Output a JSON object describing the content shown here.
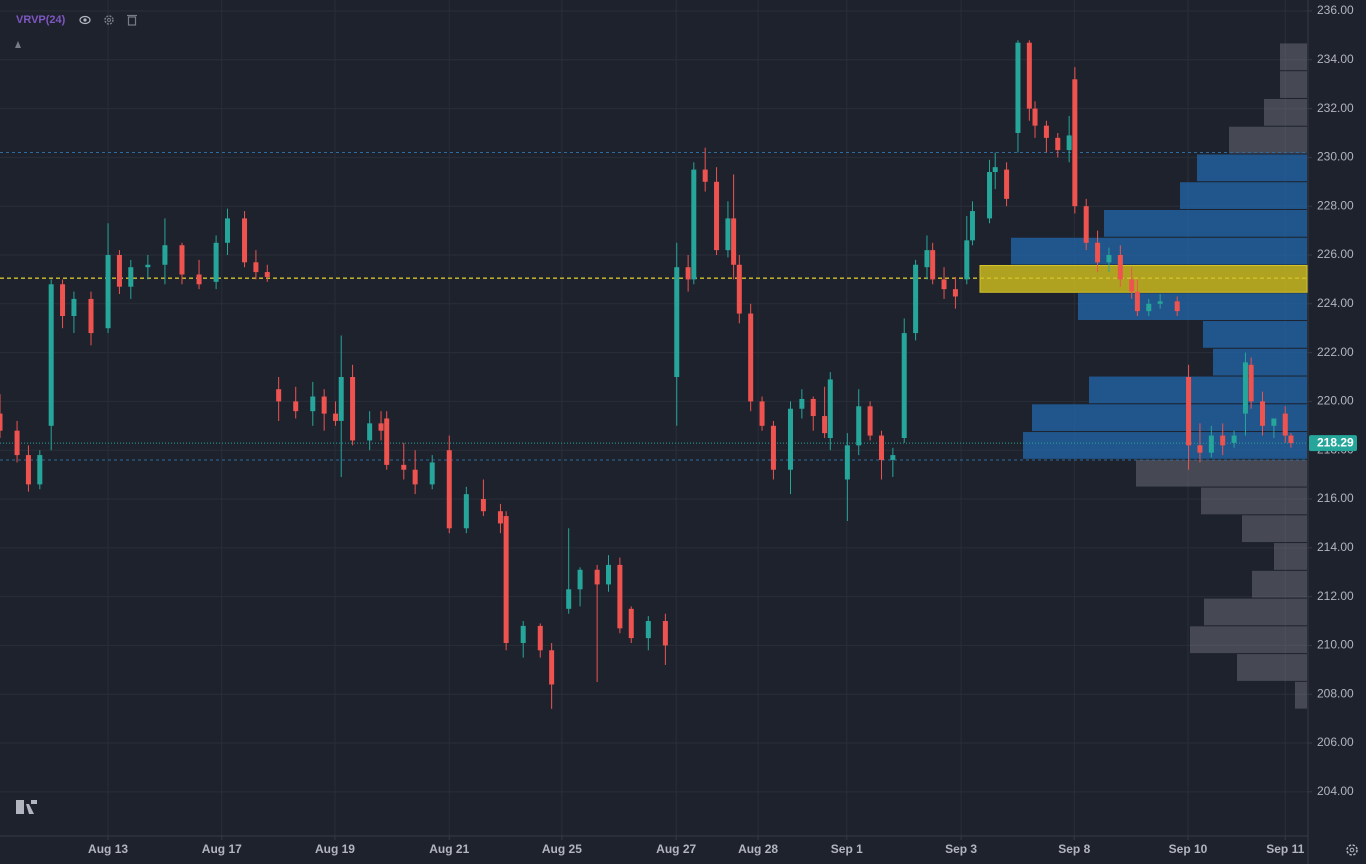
{
  "chart_data": {
    "type": "candlestick",
    "indicator": "VRVP(24)",
    "xlim": [
      0,
      230
    ],
    "ylim": [
      202.19,
      236.45
    ],
    "xticks": [
      {
        "value": 19,
        "label": "Aug 13"
      },
      {
        "value": 39,
        "label": "Aug 17"
      },
      {
        "value": 58.9,
        "label": "Aug 19"
      },
      {
        "value": 79,
        "label": "Aug 21"
      },
      {
        "value": 98.8,
        "label": "Aug 25"
      },
      {
        "value": 118.9,
        "label": "Aug 27"
      },
      {
        "value": 133.3,
        "label": "Aug 28"
      },
      {
        "value": 148.9,
        "label": "Sep 1"
      },
      {
        "value": 169,
        "label": "Sep 3"
      },
      {
        "value": 188.9,
        "label": "Sep 8"
      },
      {
        "value": 208.9,
        "label": "Sep 10"
      },
      {
        "value": 226,
        "label": "Sep 11"
      }
    ],
    "yticks": [
      {
        "value": 204,
        "label": "204.00"
      },
      {
        "value": 206,
        "label": "206.00"
      },
      {
        "value": 208,
        "label": "208.00"
      },
      {
        "value": 210,
        "label": "210.00"
      },
      {
        "value": 212,
        "label": "212.00"
      },
      {
        "value": 214,
        "label": "214.00"
      },
      {
        "value": 216,
        "label": "216.00"
      },
      {
        "value": 218,
        "label": "218.00"
      },
      {
        "value": 220,
        "label": "220.00"
      },
      {
        "value": 222,
        "label": "222.00"
      },
      {
        "value": 224,
        "label": "224.00"
      },
      {
        "value": 226,
        "label": "226.00"
      },
      {
        "value": 228,
        "label": "228.00"
      },
      {
        "value": 230,
        "label": "230.00"
      },
      {
        "value": 232,
        "label": "232.00"
      },
      {
        "value": 234,
        "label": "234.00"
      },
      {
        "value": 236,
        "label": "236.00"
      }
    ],
    "grid": true,
    "up_color": "#26a69a",
    "down_color": "#ef5350",
    "x": [
      0,
      3,
      5,
      7,
      9,
      11,
      13,
      16,
      19,
      21,
      23,
      26,
      29,
      32,
      35,
      38,
      40,
      43,
      45,
      47,
      49,
      52,
      55,
      57,
      59,
      60,
      62,
      65,
      67,
      68,
      71,
      73,
      76,
      79,
      82,
      85,
      88,
      89,
      92,
      95,
      97,
      100,
      102,
      105,
      107,
      109,
      111,
      114,
      117,
      119,
      121,
      122,
      124,
      126,
      128,
      129,
      130,
      132,
      134,
      136,
      139,
      141,
      143,
      145,
      146,
      149,
      151,
      153,
      155,
      157,
      159,
      161,
      163,
      164,
      166,
      168,
      170,
      171,
      174,
      175,
      177,
      179,
      181,
      182,
      184,
      186,
      188,
      189,
      191,
      193,
      195,
      197,
      199,
      200,
      202,
      204,
      207,
      209,
      211,
      213,
      215,
      217,
      219,
      220,
      222,
      224,
      226,
      227
    ],
    "open": [
      219.5,
      218.8,
      217.8,
      216.6,
      219,
      224.8,
      223.5,
      224.2,
      223,
      226,
      224.7,
      225.5,
      225.6,
      226.4,
      225.2,
      224.9,
      226.5,
      227.5,
      225.7,
      225.3,
      220.5,
      220,
      219.6,
      220.2,
      219.5,
      219.2,
      221,
      218.4,
      219.1,
      219.3,
      217.4,
      217.2,
      216.6,
      218,
      214.8,
      216,
      215.5,
      215.3,
      210.1,
      210.8,
      209.8,
      211.5,
      212.3,
      213.1,
      212.5,
      213.3,
      211.5,
      210.3,
      211,
      221,
      225.5,
      225,
      229.5,
      229,
      226.2,
      227.5,
      225.6,
      223.6,
      220,
      219,
      217.2,
      219.7,
      220.1,
      219.4,
      218.5,
      216.8,
      218.2,
      219.8,
      218.6,
      217.6,
      218.5,
      222.8,
      225.5,
      226.2,
      225,
      224.6,
      225,
      226.6,
      227.5,
      229.4,
      229.5,
      231,
      234.7,
      232,
      231.3,
      230.8,
      230.3,
      233.2,
      228,
      226.5,
      225.7,
      226,
      225,
      224.5,
      223.7,
      224,
      224.1,
      221,
      218.2,
      217.9,
      218.6,
      218.3,
      219.5,
      221.5,
      220,
      219,
      219.5,
      218.6
    ],
    "high": [
      220.3,
      219.2,
      218.2,
      218,
      225,
      225,
      224.5,
      224.5,
      227.3,
      226.2,
      225.8,
      226,
      227.5,
      226.5,
      225.8,
      226.8,
      227.9,
      227.8,
      226.2,
      225.6,
      221,
      220.6,
      220.8,
      220.5,
      220,
      222.7,
      221.5,
      219.6,
      219.6,
      219.6,
      218.3,
      218,
      217.8,
      218.6,
      216.5,
      216.8,
      215.8,
      215.5,
      211,
      210.9,
      210.1,
      214.8,
      213.2,
      213.3,
      213.7,
      213.6,
      211.6,
      211.2,
      211.3,
      226.5,
      226,
      229.8,
      230.4,
      229.6,
      228.2,
      229.3,
      226,
      224,
      220.2,
      219.2,
      220,
      220.5,
      220.2,
      220.6,
      221.2,
      218.7,
      220.5,
      220,
      218.8,
      218.1,
      223.4,
      225.8,
      226.8,
      226.5,
      225.5,
      225.1,
      227.6,
      228.2,
      229.9,
      230.2,
      229.8,
      234.8,
      234.8,
      232.3,
      231.5,
      231,
      231.7,
      233.7,
      228.3,
      227,
      226.3,
      226.4,
      225.5,
      225,
      224.2,
      224.4,
      224.3,
      221.5,
      219.1,
      219,
      219.1,
      218.8,
      222,
      221.8,
      220.4,
      219.3,
      219.8,
      218.7
    ],
    "low": [
      218.5,
      217.5,
      216.3,
      216.4,
      218,
      223,
      222.8,
      222.3,
      222.8,
      224.4,
      224.2,
      225,
      224.8,
      224.8,
      224.6,
      224.6,
      226,
      225.5,
      225,
      224.9,
      219.2,
      219.3,
      219,
      218.8,
      219,
      216.9,
      218.2,
      218,
      218.4,
      217.2,
      216.8,
      216.2,
      216.4,
      214.6,
      214.6,
      215.3,
      214.6,
      209.8,
      209.5,
      209.5,
      207.4,
      211.3,
      211.6,
      208.5,
      212.2,
      210.5,
      210.1,
      209.8,
      209.2,
      219,
      224.5,
      224.8,
      228.6,
      226,
      225.9,
      225,
      223.2,
      219.6,
      218.8,
      216.8,
      216.2,
      219.3,
      218.8,
      218.5,
      218,
      215.1,
      217.8,
      218.4,
      216.8,
      216.9,
      218.3,
      222.5,
      225,
      224.8,
      224.2,
      223.8,
      224.8,
      226.4,
      227.3,
      228.7,
      228,
      230.2,
      231.5,
      230.8,
      230.2,
      230,
      229.8,
      227.7,
      226.2,
      225.3,
      225.3,
      224.7,
      224.2,
      223.5,
      223.5,
      223.8,
      223.5,
      217.2,
      217.5,
      217.7,
      217.8,
      218.1,
      218.6,
      219.7,
      218.6,
      218.5,
      218.3,
      218.1
    ],
    "close": [
      218.8,
      217.8,
      216.6,
      217.8,
      224.8,
      223.5,
      224.2,
      222.8,
      226,
      224.7,
      225.5,
      225.6,
      226.4,
      225.2,
      224.8,
      226.5,
      227.5,
      225.7,
      225.3,
      225.1,
      220,
      219.6,
      220.2,
      219.5,
      219.2,
      221,
      218.4,
      219.1,
      218.8,
      217.4,
      217.2,
      216.6,
      217.5,
      214.8,
      216.2,
      215.5,
      215,
      210.1,
      210.8,
      209.8,
      208.4,
      212.3,
      213.1,
      212.5,
      213.3,
      210.7,
      210.3,
      211,
      210,
      225.5,
      225,
      229.5,
      229,
      226.2,
      227.5,
      225.6,
      223.6,
      220,
      219,
      217.2,
      219.7,
      220.1,
      219.4,
      218.7,
      220.9,
      218.2,
      219.8,
      218.6,
      217.6,
      217.8,
      222.8,
      225.6,
      226.2,
      225,
      224.6,
      224.3,
      226.6,
      227.8,
      229.4,
      229.6,
      228.3,
      234.7,
      232,
      231.3,
      230.8,
      230.3,
      230.9,
      228,
      226.5,
      225.7,
      226,
      225,
      224.5,
      223.7,
      224,
      224.1,
      223.7,
      218.2,
      217.9,
      218.6,
      218.2,
      218.6,
      221.6,
      220,
      219,
      219.3,
      218.6,
      218.29
    ],
    "profile_range": [
      207.39,
      234.69
    ],
    "profile_volumes": [
      27,
      27,
      43,
      78,
      110,
      127,
      203,
      296,
      327,
      229,
      104,
      94,
      218,
      275,
      284,
      171,
      106,
      65,
      33,
      55,
      103,
      117,
      70,
      12
    ],
    "value_area_rows": [
      4,
      14
    ],
    "poc_row": 8,
    "value_area_high": 230.2,
    "value_area_low": 217.6,
    "poc": 225.05,
    "last_price": 218.29
  }
}
